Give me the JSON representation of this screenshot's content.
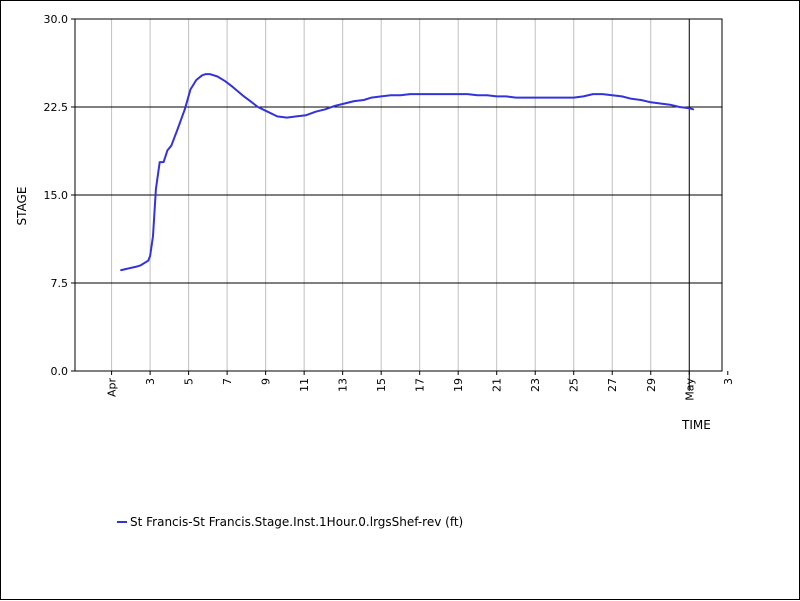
{
  "chart_data": {
    "type": "line",
    "ylabel": "STAGE",
    "xlabel": "TIME",
    "ylim": [
      0,
      30
    ],
    "y_ticks": [
      {
        "value": 0,
        "label": "0.0"
      },
      {
        "value": 7.5,
        "label": "7.5"
      },
      {
        "value": 15,
        "label": "15.0"
      },
      {
        "value": 22.5,
        "label": "22.5"
      },
      {
        "value": 30,
        "label": "30.0"
      }
    ],
    "x_range_days": [
      -0.9,
      32.7
    ],
    "x_ticks": [
      {
        "day": 1,
        "label": "Apr"
      },
      {
        "day": 3,
        "label": "3"
      },
      {
        "day": 5,
        "label": "5"
      },
      {
        "day": 7,
        "label": "7"
      },
      {
        "day": 9,
        "label": "9"
      },
      {
        "day": 11,
        "label": "11"
      },
      {
        "day": 13,
        "label": "13"
      },
      {
        "day": 15,
        "label": "15"
      },
      {
        "day": 17,
        "label": "17"
      },
      {
        "day": 19,
        "label": "19"
      },
      {
        "day": 21,
        "label": "21"
      },
      {
        "day": 23,
        "label": "23"
      },
      {
        "day": 25,
        "label": "25"
      },
      {
        "day": 27,
        "label": "27"
      },
      {
        "day": 29,
        "label": "29"
      },
      {
        "day": 31,
        "label": "May"
      },
      {
        "day": 33,
        "label": "3"
      }
    ],
    "x_major_tick_day": 31,
    "grid": true,
    "legend_position": "bottom-left",
    "series": [
      {
        "name": "St Francis-St Francis.Stage.Inst.1Hour.0.lrgsShef-rev (ft)",
        "color": "#3333dd",
        "x": [
          1.5,
          2.3,
          2.5,
          2.9,
          3.0,
          3.15,
          3.3,
          3.5,
          3.7,
          3.9,
          4.1,
          4.4,
          4.8,
          5.1,
          5.4,
          5.7,
          5.9,
          6.1,
          6.5,
          6.9,
          7.3,
          7.8,
          8.2,
          8.6,
          9.1,
          9.6,
          10.1,
          10.6,
          11.1,
          11.6,
          12.1,
          12.6,
          13.1,
          13.6,
          14.1,
          14.5,
          15.0,
          15.5,
          16.0,
          16.5,
          17.0,
          17.5,
          18.0,
          18.5,
          19.0,
          19.5,
          20.0,
          20.5,
          21.0,
          21.5,
          22.0,
          22.5,
          23.0,
          23.5,
          24.0,
          24.5,
          25.0,
          25.5,
          26.0,
          26.5,
          27.0,
          27.5,
          28.0,
          28.5,
          29.0,
          29.5,
          30.0,
          30.5,
          31.0,
          31.2
        ],
        "values": [
          8.6,
          8.9,
          9.0,
          9.4,
          9.8,
          11.5,
          15.5,
          17.8,
          17.8,
          18.8,
          19.2,
          20.5,
          22.3,
          24.0,
          24.8,
          25.2,
          25.3,
          25.3,
          25.1,
          24.7,
          24.2,
          23.5,
          23.0,
          22.5,
          22.1,
          21.7,
          21.6,
          21.7,
          21.8,
          22.1,
          22.3,
          22.6,
          22.8,
          23.0,
          23.1,
          23.3,
          23.4,
          23.5,
          23.5,
          23.6,
          23.6,
          23.6,
          23.6,
          23.6,
          23.6,
          23.6,
          23.5,
          23.5,
          23.4,
          23.4,
          23.3,
          23.3,
          23.3,
          23.3,
          23.3,
          23.3,
          23.3,
          23.4,
          23.6,
          23.6,
          23.5,
          23.4,
          23.2,
          23.1,
          22.9,
          22.8,
          22.7,
          22.5,
          22.4,
          22.3
        ]
      }
    ]
  }
}
